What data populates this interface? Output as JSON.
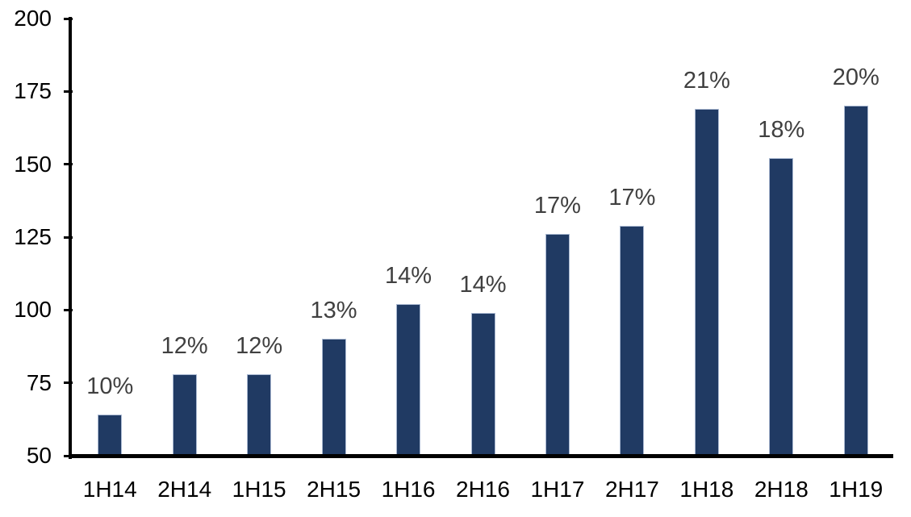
{
  "chart_data": {
    "type": "bar",
    "title": "",
    "categories": [
      "1H14",
      "2H14",
      "1H15",
      "2H15",
      "1H16",
      "2H16",
      "1H17",
      "2H17",
      "1H18",
      "2H18",
      "1H19"
    ],
    "values": [
      64,
      78,
      78,
      90,
      102,
      99,
      126,
      129,
      169,
      152,
      170
    ],
    "data_labels": [
      "10%",
      "12%",
      "12%",
      "13%",
      "14%",
      "14%",
      "17%",
      "17%",
      "21%",
      "18%",
      "20%"
    ],
    "xlabel": "",
    "ylabel": "",
    "ylim": [
      50,
      200
    ],
    "yticks": [
      50,
      75,
      100,
      125,
      150,
      175,
      200
    ],
    "grid": false,
    "legend": false,
    "colors": {
      "bar_fill": "#203a63",
      "bar_border": "#a9b8d1",
      "data_label": "#404040",
      "axis_text": "#000000",
      "axis_line": "#000000",
      "background": "#ffffff"
    }
  }
}
